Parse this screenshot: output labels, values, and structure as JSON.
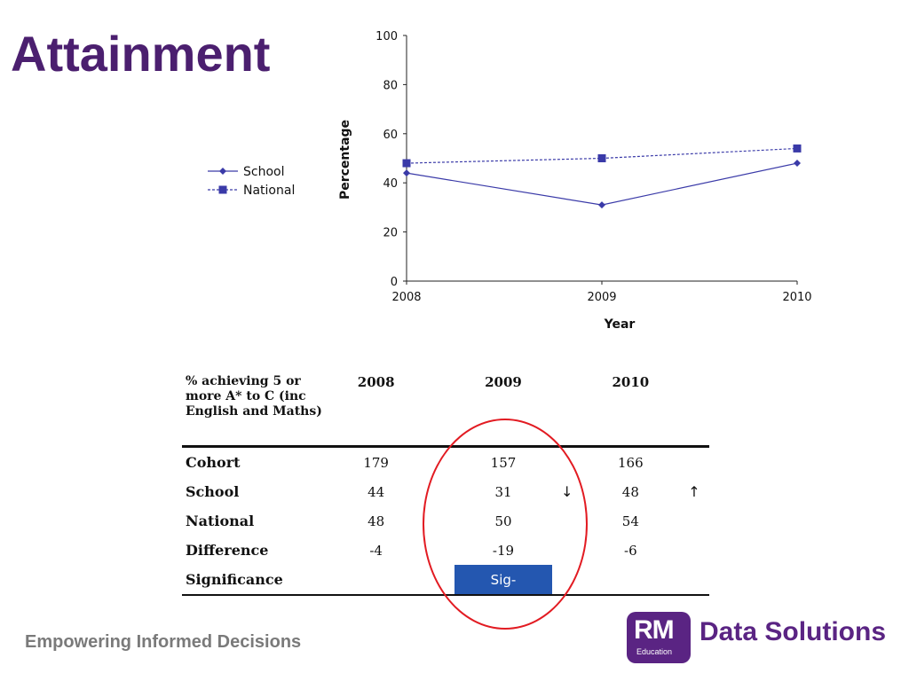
{
  "title": "Attainment",
  "tagline": "Empowering Informed Decisions",
  "logo": {
    "badge": "RM",
    "badge_sub": "Education",
    "text": "Data Solutions"
  },
  "colors": {
    "title": "#4b1f6f",
    "series": "#3a3aa8",
    "highlight": "#e21b22",
    "significance_fill": "#2457b0"
  },
  "chart_data": {
    "type": "line",
    "x": [
      2008,
      2009,
      2010
    ],
    "xlabel": "Year",
    "ylabel": "Percentage",
    "ylim": [
      0,
      100
    ],
    "yticks": [
      0,
      20,
      40,
      60,
      80,
      100
    ],
    "grid": false,
    "legend_position": "left",
    "series": [
      {
        "name": "School",
        "values": [
          44,
          31,
          48
        ],
        "line_style": "solid",
        "marker": "diamond"
      },
      {
        "name": "National",
        "values": [
          48,
          50,
          54
        ],
        "line_style": "dashed",
        "marker": "square"
      }
    ]
  },
  "table": {
    "header_label": "% achieving 5 or more A* to C (inc English and Maths)",
    "years": [
      "2008",
      "2009",
      "2010"
    ],
    "rows": [
      {
        "label": "Cohort",
        "values": [
          "179",
          "157",
          "166"
        ],
        "arrows": [
          "",
          "",
          ""
        ]
      },
      {
        "label": "School",
        "values": [
          "44",
          "31",
          "48"
        ],
        "arrows": [
          "",
          "↓",
          "↑"
        ]
      },
      {
        "label": "National",
        "values": [
          "48",
          "50",
          "54"
        ],
        "arrows": [
          "",
          "",
          ""
        ]
      },
      {
        "label": "Difference",
        "values": [
          "-4",
          "-19",
          "-6"
        ],
        "arrows": [
          "",
          "",
          ""
        ]
      },
      {
        "label": "Significance",
        "values": [
          "",
          "Sig-",
          ""
        ],
        "arrows": [
          "",
          "",
          ""
        ]
      }
    ]
  }
}
